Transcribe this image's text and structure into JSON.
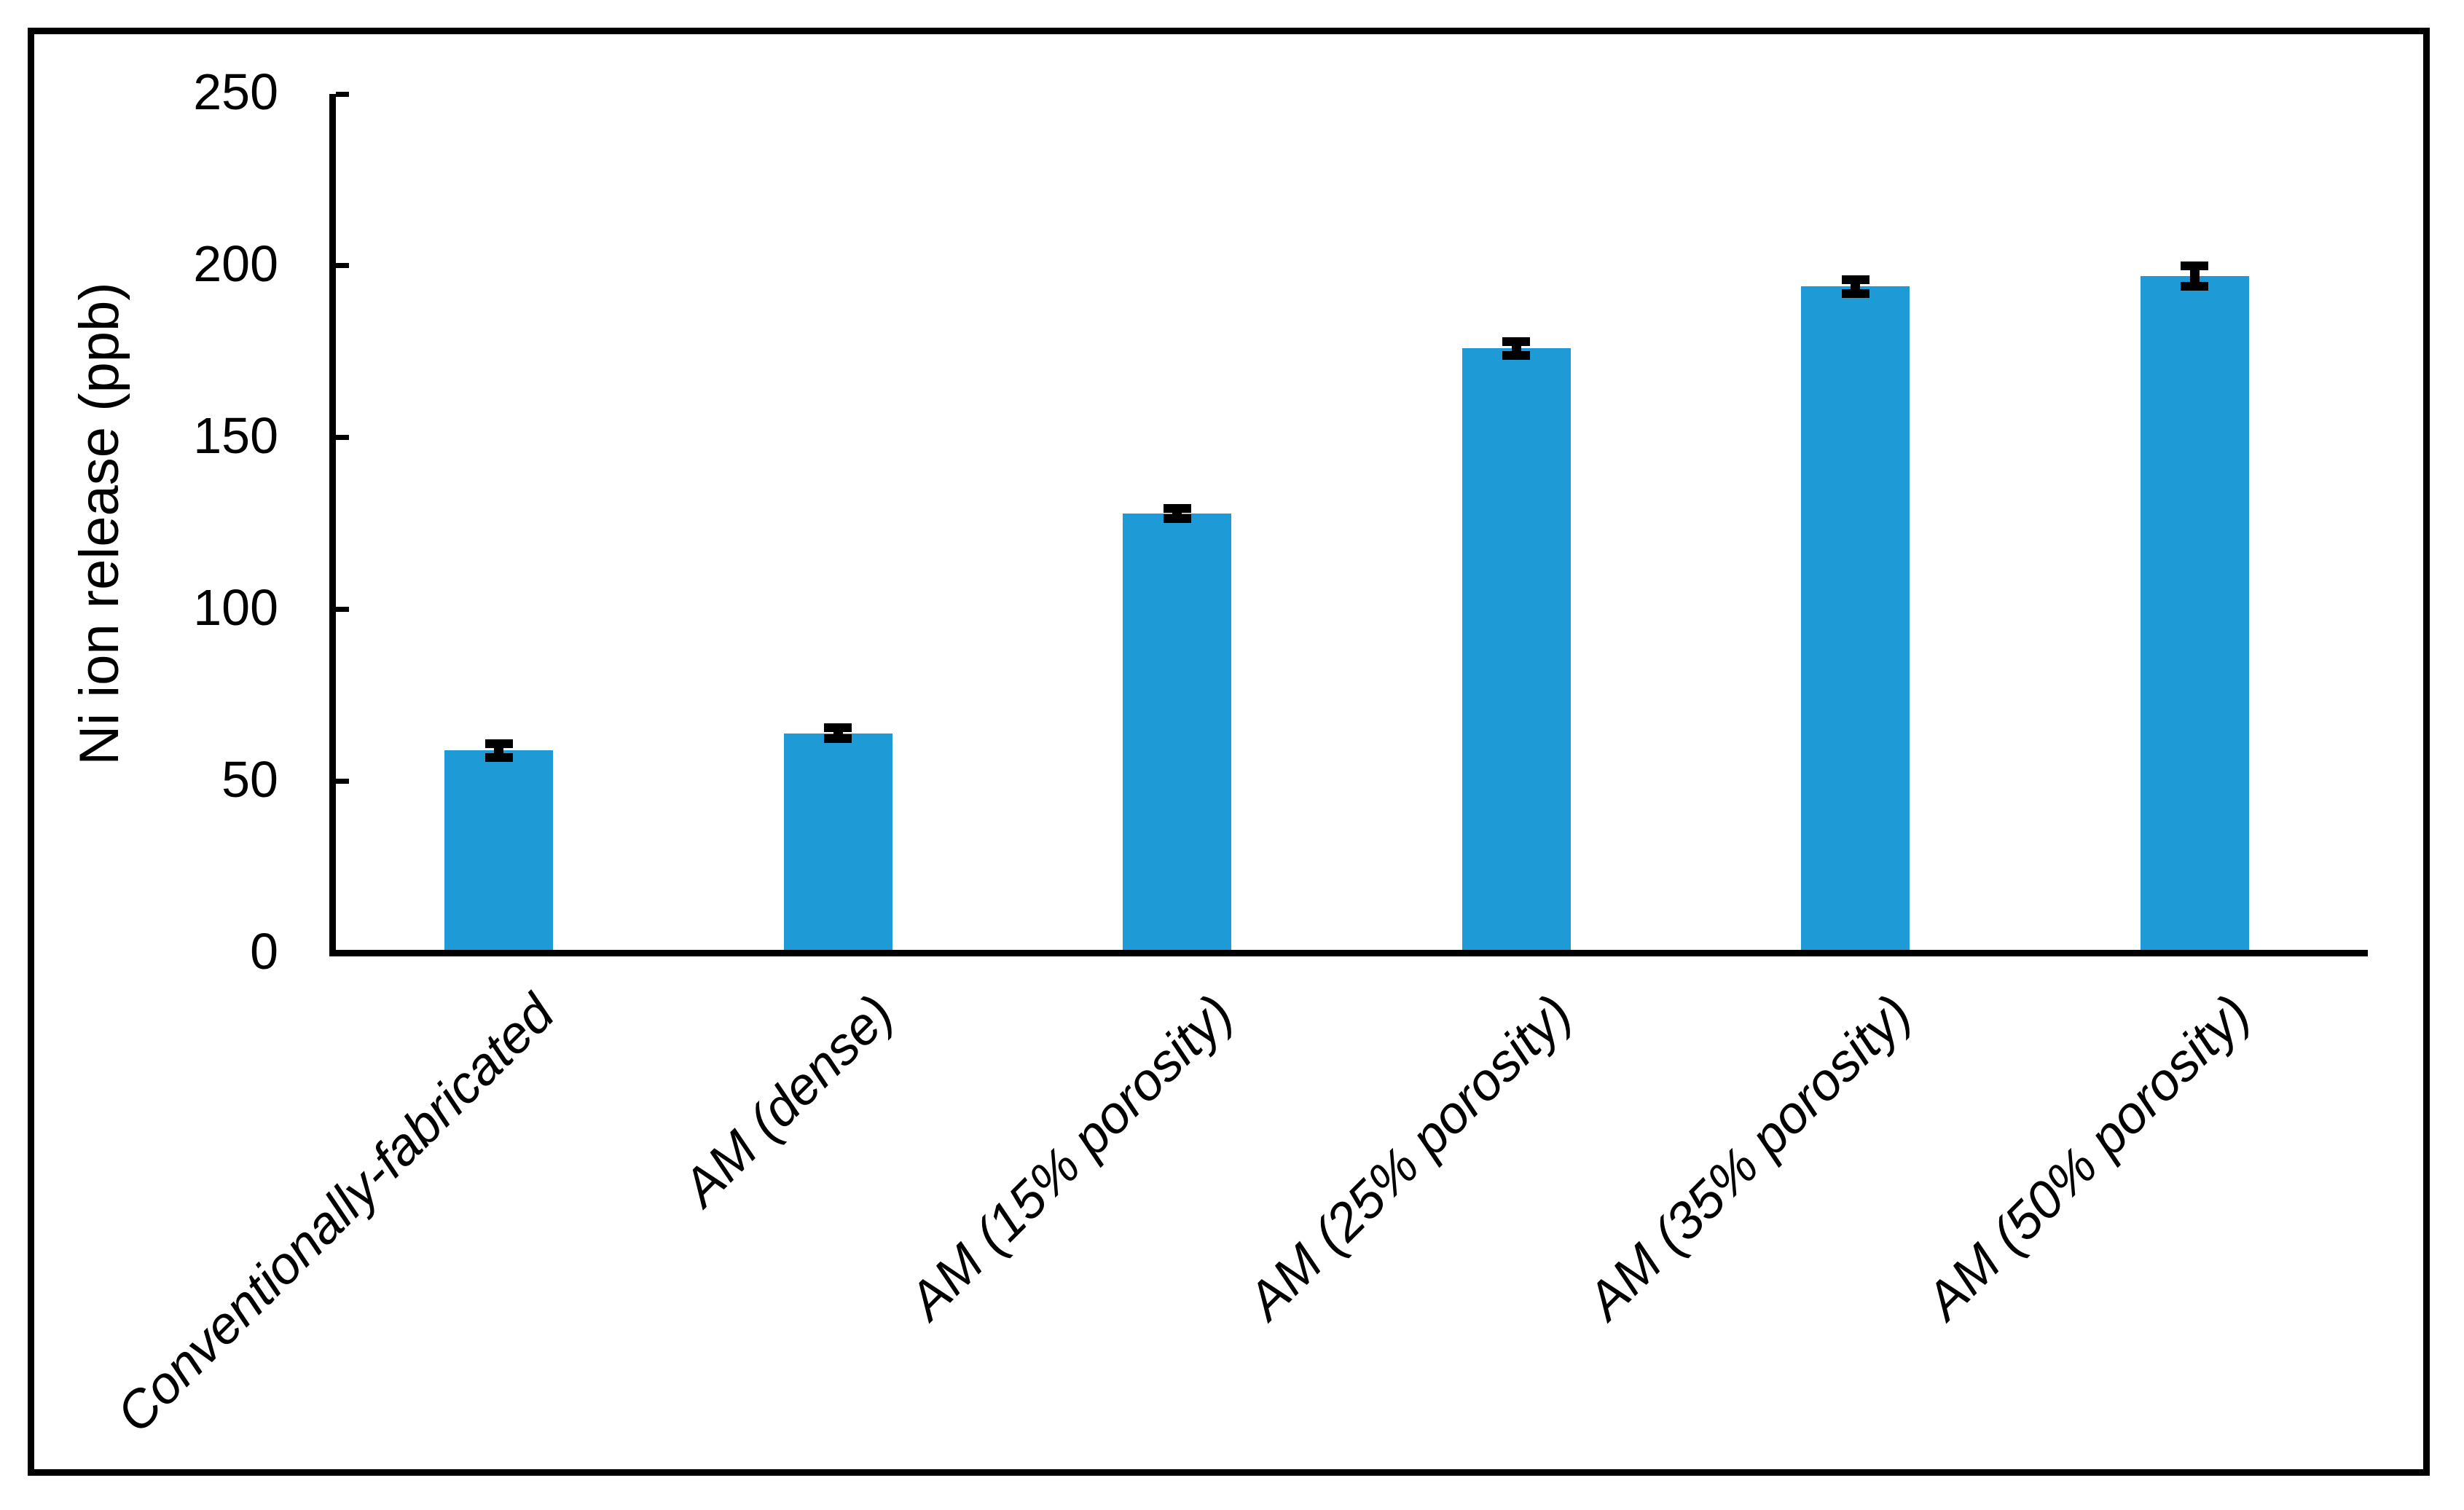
{
  "figure": {
    "background_color": "#ffffff",
    "border_color": "#000000"
  },
  "chart_data": {
    "type": "bar",
    "title": "",
    "xlabel": "",
    "ylabel": "Ni ion release (ppb)",
    "categories": [
      "Conventionally-fabricated",
      "AM (dense)",
      "AM (15% porosity)",
      "AM (25% porosity)",
      "AM (35% porosity)",
      "AM (50% porosity)"
    ],
    "values": [
      59,
      64,
      128,
      176,
      194,
      197
    ],
    "error_bars": [
      2,
      1.5,
      1.5,
      2,
      2,
      3
    ],
    "ylim": [
      0,
      250
    ],
    "yticks": [
      0,
      50,
      100,
      150,
      200,
      250
    ],
    "bar_color": "#1E9BD7",
    "error_bar_color": "#000000",
    "axis_color": "#000000",
    "grid": false,
    "legend": false,
    "tick_position": "inside",
    "category_label_rotation_deg": 45
  }
}
